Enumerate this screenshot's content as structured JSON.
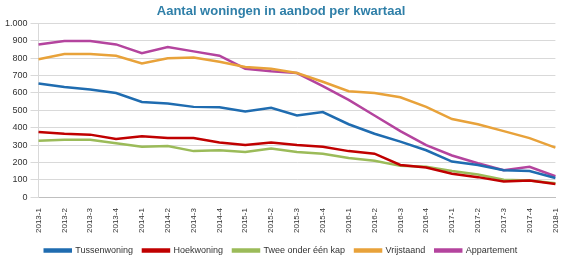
{
  "chart_data": {
    "type": "line",
    "title": "Aantal woningen in aanbod per kwartaal",
    "categories": [
      "2013-1",
      "2013-2",
      "2013-3",
      "2013-4",
      "2014-1",
      "2014-2",
      "2014-3",
      "2014-4",
      "2015-1",
      "2015-2",
      "2015-3",
      "2015-4",
      "2016-1",
      "2016-2",
      "2016-3",
      "2016-4",
      "2017-1",
      "2017-2",
      "2017-3",
      "2017-4",
      "2018-1"
    ],
    "series": [
      {
        "name": "Tussenwoning",
        "color": "#1f6cb0",
        "values": [
          655,
          635,
          620,
          600,
          548,
          540,
          520,
          518,
          493,
          515,
          470,
          490,
          420,
          365,
          320,
          270,
          205,
          185,
          155,
          150,
          110
        ]
      },
      {
        "name": "Hoekwoning",
        "color": "#c00000",
        "values": [
          375,
          365,
          360,
          335,
          350,
          340,
          340,
          315,
          300,
          315,
          300,
          290,
          265,
          250,
          185,
          170,
          135,
          115,
          90,
          95,
          75
        ]
      },
      {
        "name": "Twee onder één kap",
        "color": "#9bbb59",
        "values": [
          325,
          330,
          330,
          310,
          290,
          295,
          265,
          270,
          260,
          280,
          260,
          250,
          225,
          210,
          180,
          175,
          150,
          130,
          100,
          95,
          80
        ]
      },
      {
        "name": "Vrijstaand",
        "color": "#e8a23a",
        "values": [
          795,
          825,
          825,
          815,
          770,
          800,
          805,
          780,
          750,
          740,
          715,
          665,
          610,
          600,
          575,
          520,
          450,
          420,
          380,
          340,
          285
        ]
      },
      {
        "name": "Appartement",
        "color": "#b4449e",
        "values": [
          880,
          900,
          900,
          880,
          830,
          865,
          840,
          815,
          740,
          725,
          715,
          640,
          560,
          470,
          380,
          300,
          240,
          195,
          155,
          175,
          120
        ]
      }
    ],
    "ylim": [
      0,
      1000
    ],
    "yticks": [
      0,
      100,
      200,
      300,
      400,
      500,
      600,
      700,
      800,
      900,
      {
        "value": 1000,
        "label": "1.000"
      }
    ],
    "grid": true,
    "legend": "bottom"
  }
}
